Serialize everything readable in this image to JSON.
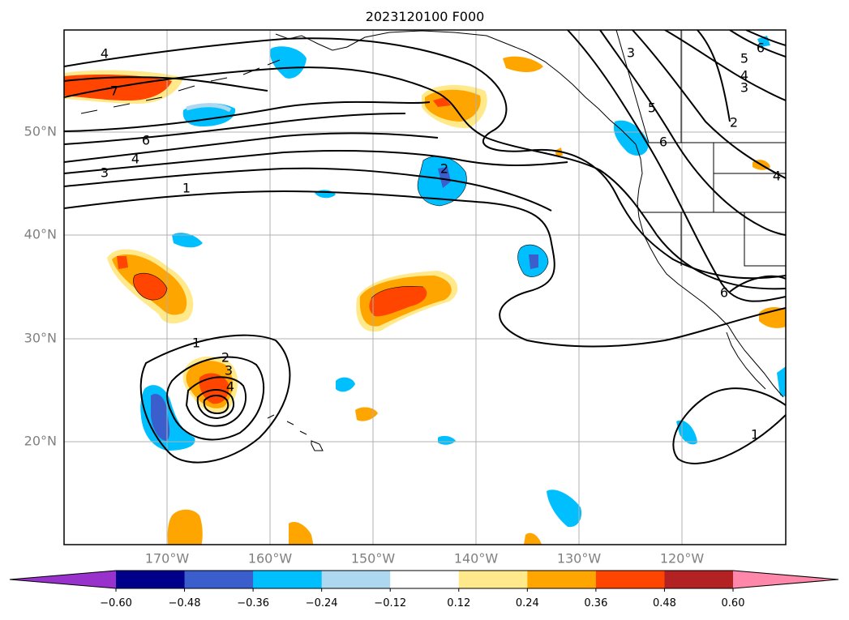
{
  "title": "2023120100 F000",
  "map": {
    "lat_labels": [
      "50°N",
      "40°N",
      "30°N",
      "20°N"
    ],
    "lon_labels": [
      "170°W",
      "160°W",
      "150°W",
      "140°W",
      "130°W",
      "120°W"
    ],
    "lat_values": [
      50,
      40,
      30,
      20
    ],
    "lon_values": [
      -170,
      -160,
      -150,
      -140,
      -130,
      -120
    ],
    "extent": {
      "lon_min": -180,
      "lon_max": -110,
      "lat_min": 10,
      "lat_max": 60
    },
    "gridlines": true,
    "projection": "Plate Carree"
  },
  "contours": {
    "color": "#000000",
    "labels": [
      "4",
      "7",
      "6",
      "4",
      "3",
      "1",
      "2",
      "3",
      "5",
      "4",
      "3",
      "2",
      "6",
      "5",
      "6",
      "4",
      "6",
      "1",
      "2",
      "3",
      "4",
      "1"
    ]
  },
  "colorbar": {
    "ticks": [
      "−0.60",
      "−0.48",
      "−0.36",
      "−0.24",
      "−0.12",
      "0.12",
      "0.24",
      "0.36",
      "0.48",
      "0.60"
    ],
    "colors": [
      "#9932cc",
      "#00008b",
      "#3a5fcd",
      "#00bfff",
      "#add8f0",
      "#ffffff",
      "#ffe98a",
      "#ffa500",
      "#ff4500",
      "#b22222",
      "#ff88aa"
    ],
    "extend": "both"
  }
}
